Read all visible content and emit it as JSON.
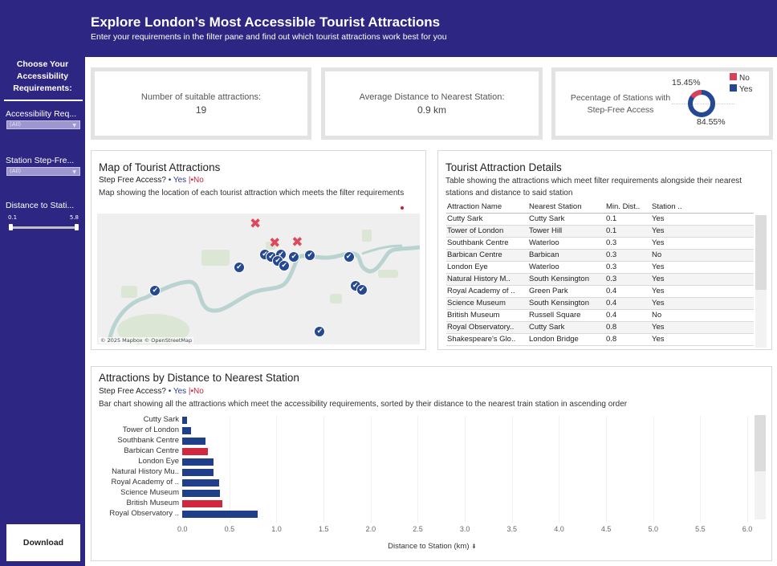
{
  "header": {
    "title": "Explore London’s Most Accessible Tourist Attractions",
    "subtitle": "Enter your requirements in the filter pane and find out which tourist attractions work best for you"
  },
  "sidebar": {
    "heading": [
      "Choose Your",
      "Accessibility",
      "Requirements:"
    ],
    "filters": [
      {
        "label": "Accessibility Req...",
        "value": "(All)"
      },
      {
        "label": "Station Step-Fre...",
        "value": "(All)"
      }
    ],
    "slider": {
      "label": "Distance to Stati...",
      "min_label": "0.1",
      "max_label": "5.8",
      "min": 0.1,
      "max": 5.8
    },
    "download_label": "Download"
  },
  "kpis": {
    "count": {
      "label": "Number of suitable attractions:",
      "value": "19"
    },
    "avg_distance": {
      "label": "Average Distance to Nearest Station:",
      "value": "0.9 km"
    },
    "step_free": {
      "label": "Pecentage of Stations with Step-Free Access",
      "no_pct": "15.45%",
      "yes_pct": "84.55%",
      "no_value": 15.45,
      "yes_value": 84.55,
      "legend": [
        {
          "label": "No",
          "color": "#d9415a"
        },
        {
          "label": "Yes",
          "color": "#244891"
        }
      ]
    }
  },
  "legend": {
    "prefix": "Step Free Access?",
    "yes": "• Yes",
    "sep": "|",
    "no": "•No"
  },
  "colors": {
    "yes": "#1f3f8a",
    "no": "#d2283f",
    "header": "#2e2683"
  },
  "map_panel": {
    "title": "Map of Tourist Attractions",
    "description": "Map showing the location of each tourist attraction which meets the filter requirements",
    "credit": "© 2025 Mapbox  © OpenStreetMap",
    "markers": [
      {
        "type": "no",
        "pos": [
          0.49,
          0.08
        ]
      },
      {
        "type": "no",
        "pos": [
          0.55,
          0.23
        ]
      },
      {
        "type": "no",
        "pos": [
          0.62,
          0.22
        ]
      },
      {
        "type": "yes",
        "pos": [
          0.52,
          0.31
        ]
      },
      {
        "type": "yes",
        "pos": [
          0.54,
          0.33
        ]
      },
      {
        "type": "yes",
        "pos": [
          0.57,
          0.31
        ]
      },
      {
        "type": "yes",
        "pos": [
          0.56,
          0.36
        ]
      },
      {
        "type": "yes",
        "pos": [
          0.58,
          0.4
        ]
      },
      {
        "type": "yes",
        "pos": [
          0.61,
          0.33
        ]
      },
      {
        "type": "yes",
        "pos": [
          0.66,
          0.32
        ]
      },
      {
        "type": "yes",
        "pos": [
          0.44,
          0.41
        ]
      },
      {
        "type": "yes",
        "pos": [
          0.78,
          0.33
        ]
      },
      {
        "type": "yes",
        "pos": [
          0.8,
          0.55
        ]
      },
      {
        "type": "yes",
        "pos": [
          0.82,
          0.58
        ]
      },
      {
        "type": "yes",
        "pos": [
          0.18,
          0.59
        ]
      },
      {
        "type": "yes",
        "pos": [
          0.69,
          0.9
        ]
      }
    ]
  },
  "table_panel": {
    "title": "Tourist Attraction Details",
    "description": "Table showing the attractions which meet filter requirements alongside their nearest stations and distance to said station",
    "columns": [
      "Attraction Name",
      "Nearest Station",
      "Min. Dist..",
      "Station .."
    ],
    "rows": [
      [
        "Cutty Sark",
        "Cutty Sark",
        "0.1",
        "Yes"
      ],
      [
        "Tower of London",
        "Tower Hill",
        "0.1",
        "Yes"
      ],
      [
        "Southbank Centre",
        "Waterloo",
        "0.3",
        "Yes"
      ],
      [
        "Barbican Centre",
        "Barbican",
        "0.3",
        "No"
      ],
      [
        "London Eye",
        "Waterloo",
        "0.3",
        "Yes"
      ],
      [
        "Natural History M..",
        "South Kensington",
        "0.3",
        "Yes"
      ],
      [
        "Royal Academy of ..",
        "Green Park",
        "0.4",
        "Yes"
      ],
      [
        "Science Museum",
        "South Kensington",
        "0.4",
        "Yes"
      ],
      [
        "British Museum",
        "Russell Square",
        "0.4",
        "No"
      ],
      [
        "Royal Observatory..",
        "Cutty Sark",
        "0.8",
        "Yes"
      ],
      [
        "Shakespeare's Glo..",
        "London Bridge",
        "0.8",
        "Yes"
      ]
    ]
  },
  "bar_panel": {
    "title": "Attractions by Distance to Nearest Station",
    "description": "Bar chart showing all the attractions which meet the accessibility requirements, sorted by their distance to the nearest train station in ascending order"
  },
  "chart_data": {
    "type": "bar",
    "orientation": "horizontal",
    "title": "Attractions by Distance to Nearest Station",
    "xlabel": "Distance to Station (km)",
    "ylabel": "",
    "xlim": [
      0,
      6.0
    ],
    "x_ticks": [
      "0.0",
      "0.5",
      "1.0",
      "1.5",
      "2.0",
      "2.5",
      "3.0",
      "3.5",
      "4.0",
      "4.5",
      "5.0",
      "5.5",
      "6.0"
    ],
    "categories": [
      "Cutty Sark",
      "Tower of London",
      "Southbank Centre",
      "Barbican Centre",
      "London Eye",
      "Natural History Mu..",
      "Royal Academy of ..",
      "Science Museum",
      "British Museum",
      "Royal Observatory .."
    ],
    "values": [
      0.05,
      0.09,
      0.25,
      0.27,
      0.33,
      0.33,
      0.39,
      0.4,
      0.43,
      0.8
    ],
    "step_free": [
      "Yes",
      "Yes",
      "Yes",
      "No",
      "Yes",
      "Yes",
      "Yes",
      "Yes",
      "No",
      "Yes"
    ],
    "legend": {
      "Yes": "#1f3f8a",
      "No": "#d2283f"
    },
    "grid": true
  }
}
